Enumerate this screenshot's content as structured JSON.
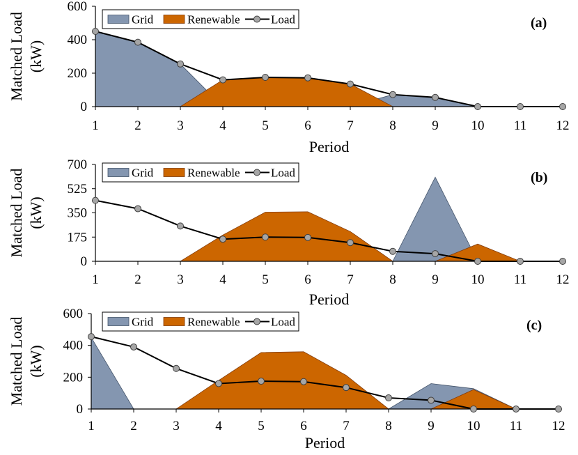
{
  "colors": {
    "grid": "#8496B0",
    "grid_edge": "#44546A",
    "renewable": "#CC6600",
    "renewable_edge": "#833C0B",
    "load_line": "#000000",
    "load_marker": "#A6A6A6"
  },
  "chart_data": [
    {
      "type": "area",
      "panel_label": "(a)",
      "xlabel": "Period",
      "ylabel": [
        "Matched Load",
        "(kW)"
      ],
      "x": [
        1,
        2,
        3,
        4,
        5,
        6,
        7,
        8,
        9,
        10,
        11,
        12
      ],
      "xlim": [
        1,
        12
      ],
      "ylim": [
        0,
        600
      ],
      "yticks": [
        0,
        200,
        400,
        600
      ],
      "legend": [
        "Grid",
        "Renewable",
        "Load"
      ],
      "legend_position": "top-left",
      "series": [
        {
          "name": "Grid",
          "kind": "area",
          "values": [
            450,
            385,
            255,
            0,
            0,
            0,
            0,
            72,
            55,
            0,
            0,
            0
          ]
        },
        {
          "name": "Renewable",
          "kind": "area",
          "values": [
            0,
            0,
            0,
            160,
            175,
            172,
            135,
            0,
            0,
            0,
            0,
            0
          ]
        },
        {
          "name": "Load",
          "kind": "line",
          "values": [
            450,
            385,
            255,
            160,
            175,
            172,
            135,
            72,
            55,
            0,
            0,
            0
          ]
        }
      ]
    },
    {
      "type": "area",
      "panel_label": "(b)",
      "xlabel": "Period",
      "ylabel": [
        "Matched Load",
        "(kW)"
      ],
      "x": [
        1,
        2,
        3,
        4,
        5,
        6,
        7,
        8,
        9,
        10,
        11,
        12
      ],
      "xlim": [
        1,
        12
      ],
      "ylim": [
        0,
        700
      ],
      "yticks": [
        0,
        175,
        350,
        525,
        700
      ],
      "legend": [
        "Grid",
        "Renewable",
        "Load"
      ],
      "legend_position": "top-left",
      "series": [
        {
          "name": "Grid",
          "kind": "area",
          "values": [
            0,
            0,
            0,
            0,
            0,
            0,
            0,
            0,
            608,
            0,
            0,
            0
          ]
        },
        {
          "name": "Renewable",
          "kind": "area",
          "values": [
            0,
            0,
            0,
            190,
            355,
            358,
            215,
            0,
            0,
            125,
            0,
            0
          ]
        },
        {
          "name": "Load",
          "kind": "line",
          "values": [
            440,
            380,
            255,
            160,
            175,
            172,
            135,
            72,
            55,
            0,
            0,
            0
          ]
        }
      ]
    },
    {
      "type": "area",
      "panel_label": "(c)",
      "xlabel": "Period",
      "ylabel": [
        "Matched Load",
        "(kW)"
      ],
      "x": [
        1,
        2,
        3,
        4,
        5,
        6,
        7,
        8,
        9,
        10,
        11,
        12
      ],
      "xlim": [
        1,
        12
      ],
      "ylim": [
        0,
        600
      ],
      "yticks": [
        0,
        200,
        400,
        600
      ],
      "legend": [
        "Grid",
        "Renewable",
        "Load"
      ],
      "legend_position": "top-left",
      "series": [
        {
          "name": "Grid",
          "kind": "area",
          "values": [
            450,
            0,
            0,
            0,
            0,
            0,
            0,
            0,
            160,
            128,
            0,
            0
          ]
        },
        {
          "name": "Renewable",
          "kind": "area",
          "values": [
            0,
            0,
            0,
            180,
            355,
            360,
            212,
            0,
            0,
            122,
            0,
            0
          ]
        },
        {
          "name": "Load",
          "kind": "line",
          "values": [
            455,
            390,
            255,
            160,
            175,
            172,
            135,
            70,
            55,
            0,
            0,
            0
          ]
        }
      ]
    }
  ]
}
